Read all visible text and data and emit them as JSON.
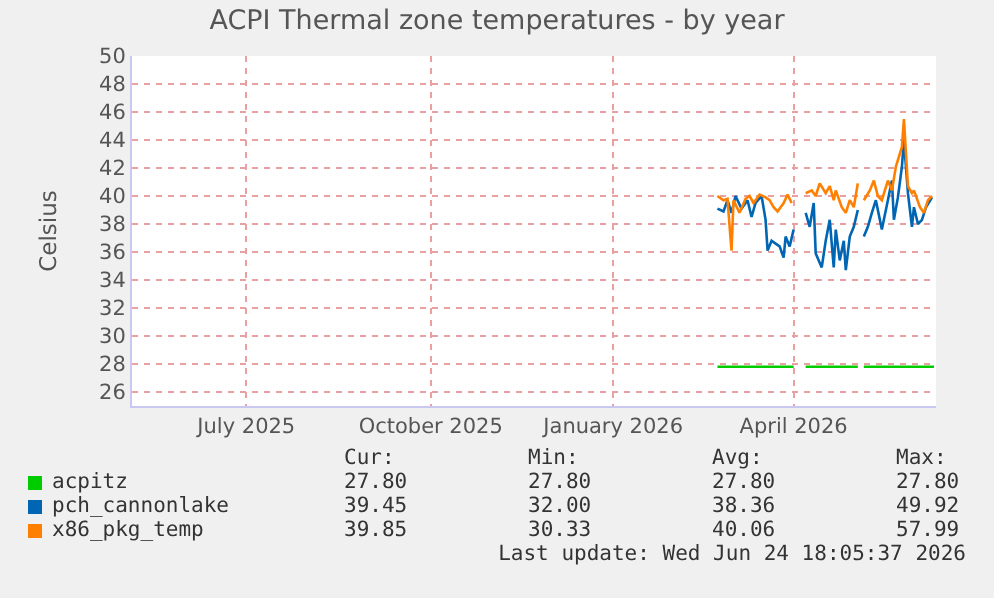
{
  "chart_data": {
    "type": "line",
    "title": "ACPI Thermal zone temperatures - by year",
    "ylabel": "Celsius",
    "xlim": [
      "2025-05-20",
      "2026-06-25"
    ],
    "xticks": [
      {
        "value": "2025-07-16",
        "label": "July 2025"
      },
      {
        "value": "2025-10-16",
        "label": "October 2025"
      },
      {
        "value": "2026-01-15",
        "label": "January 2026"
      },
      {
        "value": "2026-04-15",
        "label": "April 2026"
      }
    ],
    "ylim": [
      25,
      50
    ],
    "yticks": [
      26,
      28,
      30,
      32,
      34,
      36,
      38,
      40,
      42,
      44,
      46,
      48,
      50
    ],
    "grid": true,
    "legend": "bottom",
    "line_style": "solid",
    "series": [
      {
        "name": "acpitz",
        "color": "#00cc00",
        "x": [
          "2026-03-08",
          "2026-04-15",
          "2026-04-18",
          "2026-04-21",
          "2026-05-17",
          "2026-05-19",
          "2026-05-20",
          "2026-06-24"
        ],
        "values": [
          27.8,
          27.8,
          null,
          27.8,
          27.8,
          null,
          27.8,
          27.8
        ]
      },
      {
        "name": "pch_cannonlake",
        "color": "#0066b3",
        "x": [
          "2026-03-08",
          "2026-03-11",
          "2026-03-13",
          "2026-03-15",
          "2026-03-17",
          "2026-03-20",
          "2026-03-23",
          "2026-03-25",
          "2026-03-27",
          "2026-03-30",
          "2026-04-01",
          "2026-04-02",
          "2026-04-04",
          "2026-04-06",
          "2026-04-08",
          "2026-04-10",
          "2026-04-11",
          "2026-04-13",
          "2026-04-15",
          "2026-04-18",
          "2026-04-21",
          "2026-04-23",
          "2026-04-25",
          "2026-04-26",
          "2026-04-29",
          "2026-05-01",
          "2026-05-03",
          "2026-05-05",
          "2026-05-06",
          "2026-05-08",
          "2026-05-10",
          "2026-05-11",
          "2026-05-13",
          "2026-05-15",
          "2026-05-17",
          "2026-05-19",
          "2026-05-20",
          "2026-05-22",
          "2026-05-24",
          "2026-05-26",
          "2026-05-28",
          "2026-05-29",
          "2026-06-01",
          "2026-06-03",
          "2026-06-04",
          "2026-06-06",
          "2026-06-08",
          "2026-06-09",
          "2026-06-11",
          "2026-06-13",
          "2026-06-14",
          "2026-06-16",
          "2026-06-18",
          "2026-06-20",
          "2026-06-23"
        ],
        "values": [
          39.1,
          38.9,
          39.7,
          38.8,
          40.0,
          39.1,
          39.7,
          38.5,
          39.5,
          40.0,
          38.3,
          36.1,
          36.8,
          36.6,
          36.4,
          35.6,
          37.1,
          36.4,
          37.6,
          null,
          38.8,
          37.8,
          39.5,
          35.9,
          34.9,
          36.8,
          38.3,
          34.9,
          37.6,
          35.4,
          36.8,
          34.7,
          37.1,
          37.8,
          39.0,
          null,
          37.1,
          37.8,
          38.8,
          39.7,
          38.3,
          37.6,
          39.7,
          41.1,
          38.3,
          39.9,
          42.1,
          44.0,
          40.2,
          37.8,
          39.2,
          38.0,
          38.3,
          39.2,
          39.9
        ]
      },
      {
        "name": "x86_pkg_temp",
        "color": "#ff8000",
        "x": [
          "2026-03-08",
          "2026-03-11",
          "2026-03-13",
          "2026-03-15",
          "2026-03-16",
          "2026-03-19",
          "2026-03-22",
          "2026-03-24",
          "2026-03-26",
          "2026-03-29",
          "2026-04-01",
          "2026-04-03",
          "2026-04-05",
          "2026-04-07",
          "2026-04-10",
          "2026-04-12",
          "2026-04-14",
          "2026-04-18",
          "2026-04-21",
          "2026-04-24",
          "2026-04-26",
          "2026-04-28",
          "2026-05-01",
          "2026-05-03",
          "2026-05-05",
          "2026-05-06",
          "2026-05-09",
          "2026-05-11",
          "2026-05-13",
          "2026-05-15",
          "2026-05-17",
          "2026-05-19",
          "2026-05-20",
          "2026-05-23",
          "2026-05-25",
          "2026-05-27",
          "2026-05-29",
          "2026-06-01",
          "2026-06-03",
          "2026-06-05",
          "2026-06-08",
          "2026-06-09",
          "2026-06-11",
          "2026-06-13",
          "2026-06-14",
          "2026-06-17",
          "2026-06-19",
          "2026-06-21",
          "2026-06-23"
        ],
        "values": [
          40.0,
          39.7,
          39.8,
          36.1,
          39.7,
          38.8,
          39.8,
          40.0,
          39.5,
          40.1,
          39.9,
          39.7,
          39.2,
          38.9,
          39.5,
          40.1,
          39.5,
          null,
          40.2,
          40.4,
          40.0,
          40.9,
          40.2,
          40.7,
          39.7,
          40.4,
          39.2,
          38.8,
          39.7,
          39.2,
          40.9,
          null,
          39.7,
          40.4,
          41.1,
          40.0,
          39.7,
          41.1,
          40.4,
          42.1,
          43.5,
          45.5,
          40.7,
          40.2,
          40.4,
          39.2,
          38.8,
          39.7,
          40.0
        ]
      }
    ],
    "annotations": [
      "Cur:",
      "Min:",
      "Avg:",
      "Max:",
      "27.80",
      "27.80",
      "27.80",
      "27.80",
      "39.45",
      "32.00",
      "38.36",
      "49.92",
      "39.85",
      "30.33",
      "40.06",
      "57.99",
      "Last update: Wed Jun 24 18:05:37 2026"
    ]
  }
}
